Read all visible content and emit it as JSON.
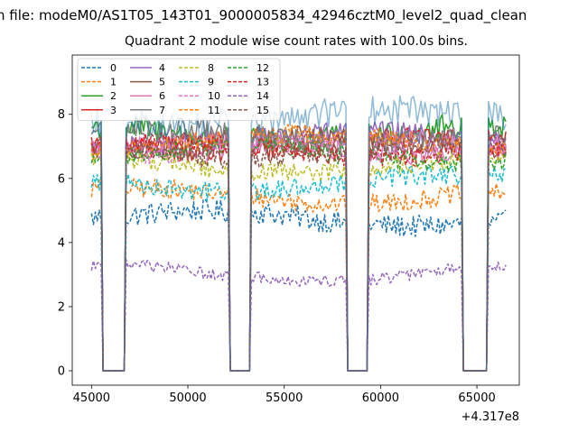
{
  "chart_data": {
    "type": "line",
    "suptitle": "n file: modeM0/AS1T05_143T01_9000005834_42946cztM0_level2_quad_clean",
    "title": "Quadrant 2 module wise count rates with 100.0s bins.",
    "xlabel": "",
    "ylabel": "",
    "x_offset_label": "+4.317e8",
    "xlim": [
      44000,
      67200
    ],
    "ylim": [
      -0.45,
      9.85
    ],
    "x_ticks": [
      45000,
      50000,
      55000,
      60000,
      65000
    ],
    "x_tick_labels": [
      "45000",
      "50000",
      "55000",
      "60000",
      "65000"
    ],
    "y_ticks": [
      0,
      2,
      4,
      6,
      8
    ],
    "y_tick_labels": [
      "0",
      "2",
      "4",
      "6",
      "8"
    ],
    "legend_position": "upper-left",
    "legend_columns": 4,
    "x_start": 45000,
    "x_end": 66500,
    "bin_seconds": 100,
    "gaps": [
      [
        45600,
        46700
      ],
      [
        52200,
        53200
      ],
      [
        58300,
        59300
      ],
      [
        64300,
        65500
      ]
    ],
    "gap_value": 0,
    "series": [
      {
        "name": "0",
        "level": 4.75,
        "noise": 0.35,
        "color": "#1f77b4",
        "dash": "dashed"
      },
      {
        "name": "1",
        "level": 5.45,
        "noise": 0.3,
        "color": "#ff7f0e",
        "dash": "dashed"
      },
      {
        "name": "2",
        "level": 7.4,
        "noise": 0.4,
        "color": "#2ca02c",
        "dash": "solid"
      },
      {
        "name": "3",
        "level": 7.05,
        "noise": 0.3,
        "color": "#d62728",
        "dash": "solid"
      },
      {
        "name": "4",
        "level": 7.2,
        "noise": 0.35,
        "color": "#9467bd",
        "dash": "solid"
      },
      {
        "name": "5",
        "level": 7.1,
        "noise": 0.3,
        "color": "#8c564b",
        "dash": "solid"
      },
      {
        "name": "6",
        "level": 6.95,
        "noise": 0.3,
        "color": "#e377c2",
        "dash": "solid"
      },
      {
        "name": "7",
        "level": 7.3,
        "noise": 0.35,
        "color": "#7f7f7f",
        "dash": "solid"
      },
      {
        "name": "8",
        "level": 6.4,
        "noise": 0.3,
        "color": "#bcbd22",
        "dash": "dashed"
      },
      {
        "name": "9",
        "level": 5.85,
        "noise": 0.3,
        "color": "#17becf",
        "dash": "dashed"
      },
      {
        "name": "10",
        "level": 7.0,
        "noise": 0.3,
        "color": "#e377c2",
        "dash": "dashed"
      },
      {
        "name": "11",
        "level": 7.15,
        "noise": 0.3,
        "color": "#ff7f0e",
        "dash": "dashed"
      },
      {
        "name": "12",
        "level": 6.75,
        "noise": 0.3,
        "color": "#2ca02c",
        "dash": "dashed"
      },
      {
        "name": "13",
        "level": 6.9,
        "noise": 0.3,
        "color": "#d62728",
        "dash": "dashed"
      },
      {
        "name": "14",
        "level": 3.05,
        "noise": 0.18,
        "color": "#9467bd",
        "dash": "dashed"
      },
      {
        "name": "15",
        "level": 6.85,
        "noise": 0.3,
        "color": "#8c564b",
        "dash": "dashed"
      },
      {
        "name": "7 (faint)",
        "level": 7.9,
        "noise": 0.45,
        "color": "#1f77b4",
        "dash": "solid",
        "opacity": 0.5,
        "legend": false
      }
    ]
  }
}
